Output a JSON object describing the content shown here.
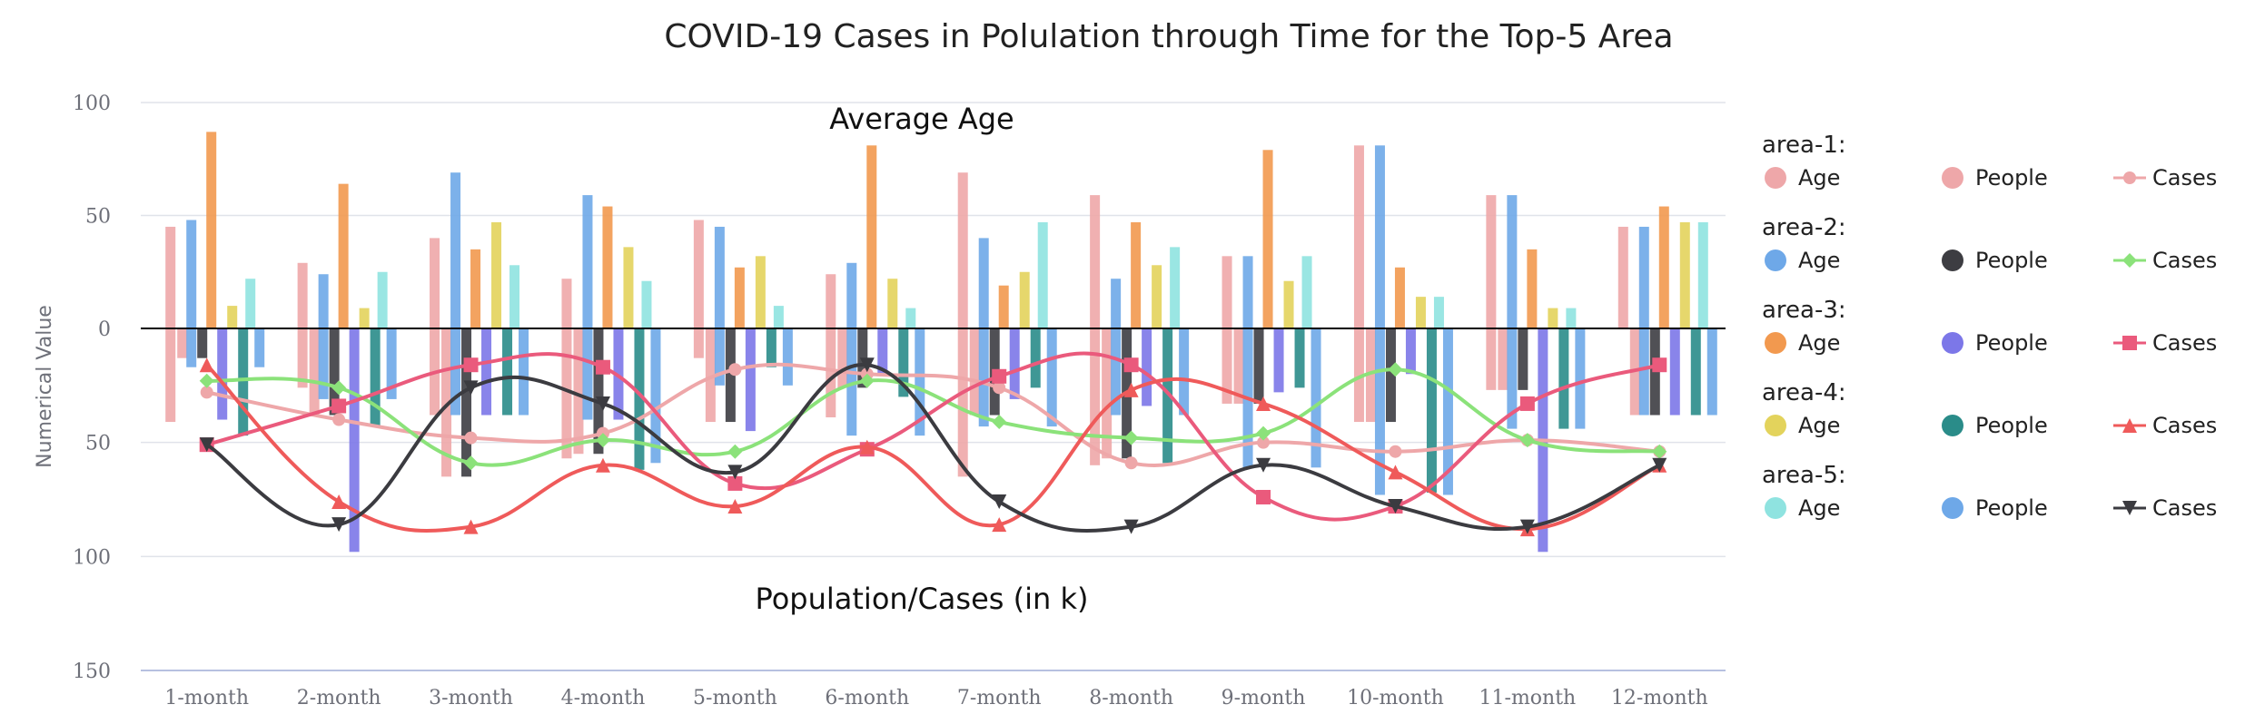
{
  "chart_data": {
    "type": "bar",
    "title": "COVID-19 Cases in Polulation through Time for the Top-5 Area",
    "top_label": "Average Age",
    "bottom_label": "Population/Cases (in k)",
    "ylabel": "Numerical Value",
    "categories": [
      "1-month",
      "2-month",
      "3-month",
      "4-month",
      "5-month",
      "6-month",
      "7-month",
      "8-month",
      "9-month",
      "10-month",
      "11-month",
      "12-month"
    ],
    "y_ticks_top": [
      "100",
      "50",
      "0"
    ],
    "y_ticks_bottom": [
      "50",
      "100",
      "150"
    ],
    "ylim_top": [
      0,
      100
    ],
    "ylim_bottom": [
      0,
      150
    ],
    "grid": true,
    "legend_position": "right",
    "areas": [
      {
        "name": "area-1:",
        "age": [
          45,
          29,
          40,
          22,
          48,
          24,
          69,
          59,
          32,
          81,
          59,
          45
        ],
        "age_down": [
          41,
          26,
          38,
          57,
          13,
          39,
          65,
          60,
          33,
          41,
          27,
          0
        ],
        "people": [
          48,
          24,
          69,
          59,
          45,
          29,
          40,
          22,
          32,
          81,
          59,
          45
        ],
        "people_down": [
          13,
          38,
          65,
          55,
          41,
          26,
          38,
          57,
          33,
          41,
          27,
          38
        ],
        "cases": [
          28,
          40,
          48,
          46,
          18,
          20,
          26,
          59,
          50,
          54,
          49,
          54
        ],
        "colors": {
          "age": "#eea7a9",
          "people": "#eea7a9",
          "cases": "#eea7a9"
        },
        "people_color_label": "#eea7a9"
      },
      {
        "name": "area-2:",
        "age": [
          48,
          24,
          69,
          59,
          45,
          29,
          40,
          22,
          32,
          81,
          59,
          45
        ],
        "age_down": [
          17,
          31,
          38,
          40,
          25,
          47,
          43,
          38,
          61,
          73,
          44,
          38
        ],
        "people": [
          13,
          38,
          65,
          55,
          41,
          26,
          38,
          57,
          33,
          41,
          27,
          38
        ],
        "cases": [
          23,
          26,
          59,
          49,
          54,
          23,
          41,
          48,
          46,
          18,
          49,
          54
        ],
        "colors": {
          "age": "#6ea8e8",
          "people": "#3d3d42",
          "cases": "#8be27a"
        }
      },
      {
        "name": "area-3:",
        "age": [
          87,
          64,
          35,
          54,
          27,
          81,
          19,
          47,
          79,
          27,
          35,
          54
        ],
        "people": [
          40,
          98,
          38,
          40,
          45,
          20,
          31,
          34,
          28,
          20,
          98,
          38
        ],
        "cases": [
          51,
          34,
          16,
          17,
          68,
          53,
          21,
          16,
          74,
          78,
          33,
          16
        ],
        "colors": {
          "age": "#f2994f",
          "people": "#7c77e8",
          "cases": "#ea5a7c"
        }
      },
      {
        "name": "area-4:",
        "age": [
          10,
          9,
          47,
          36,
          32,
          22,
          25,
          28,
          21,
          14,
          9,
          47
        ],
        "people": [
          47,
          43,
          38,
          62,
          17,
          30,
          26,
          59,
          26,
          72,
          44,
          38
        ],
        "cases": [
          16,
          76,
          87,
          60,
          78,
          52,
          86,
          27,
          33,
          63,
          88,
          60
        ],
        "colors": {
          "age": "#e3d35c",
          "people": "#2a8c89",
          "cases": "#ef5a5a"
        }
      },
      {
        "name": "area-5:",
        "age": [
          22,
          25,
          28,
          21,
          10,
          9,
          47,
          36,
          32,
          14,
          9,
          47
        ],
        "people": [
          17,
          31,
          38,
          59,
          25,
          47,
          43,
          38,
          61,
          73,
          44,
          38
        ],
        "cases": [
          51,
          86,
          26,
          33,
          63,
          16,
          76,
          87,
          60,
          78,
          87,
          60
        ],
        "colors": {
          "age": "#8fe3e0",
          "people": "#6ea8e8",
          "cases": "#3b3b40"
        }
      }
    ],
    "legend": [
      {
        "group": "area-1:",
        "items": [
          {
            "label": "Age",
            "color": "#eea7a9",
            "shape": "circle"
          },
          {
            "label": "People",
            "color": "#eea7a9",
            "shape": "circle"
          },
          {
            "label": "Cases",
            "color": "#eea7a9",
            "shape": "line-circle"
          }
        ]
      },
      {
        "group": "area-2:",
        "items": [
          {
            "label": "Age",
            "color": "#6ea8e8",
            "shape": "circle"
          },
          {
            "label": "People",
            "color": "#3d3d42",
            "shape": "circle"
          },
          {
            "label": "Cases",
            "color": "#8be27a",
            "shape": "line-diamond"
          }
        ]
      },
      {
        "group": "area-3:",
        "items": [
          {
            "label": "Age",
            "color": "#f2994f",
            "shape": "circle"
          },
          {
            "label": "People",
            "color": "#7c77e8",
            "shape": "circle"
          },
          {
            "label": "Cases",
            "color": "#ea5a7c",
            "shape": "line-square"
          }
        ]
      },
      {
        "group": "area-4:",
        "items": [
          {
            "label": "Age",
            "color": "#e3d35c",
            "shape": "circle"
          },
          {
            "label": "People",
            "color": "#2a8c89",
            "shape": "circle"
          },
          {
            "label": "Cases",
            "color": "#ef5a5a",
            "shape": "line-triangle"
          }
        ]
      },
      {
        "group": "area-5:",
        "items": [
          {
            "label": "Age",
            "color": "#8fe3e0",
            "shape": "circle"
          },
          {
            "label": "People",
            "color": "#6ea8e8",
            "shape": "circle"
          },
          {
            "label": "Cases",
            "color": "#3b3b40",
            "shape": "line-triangle-down"
          }
        ]
      }
    ]
  }
}
